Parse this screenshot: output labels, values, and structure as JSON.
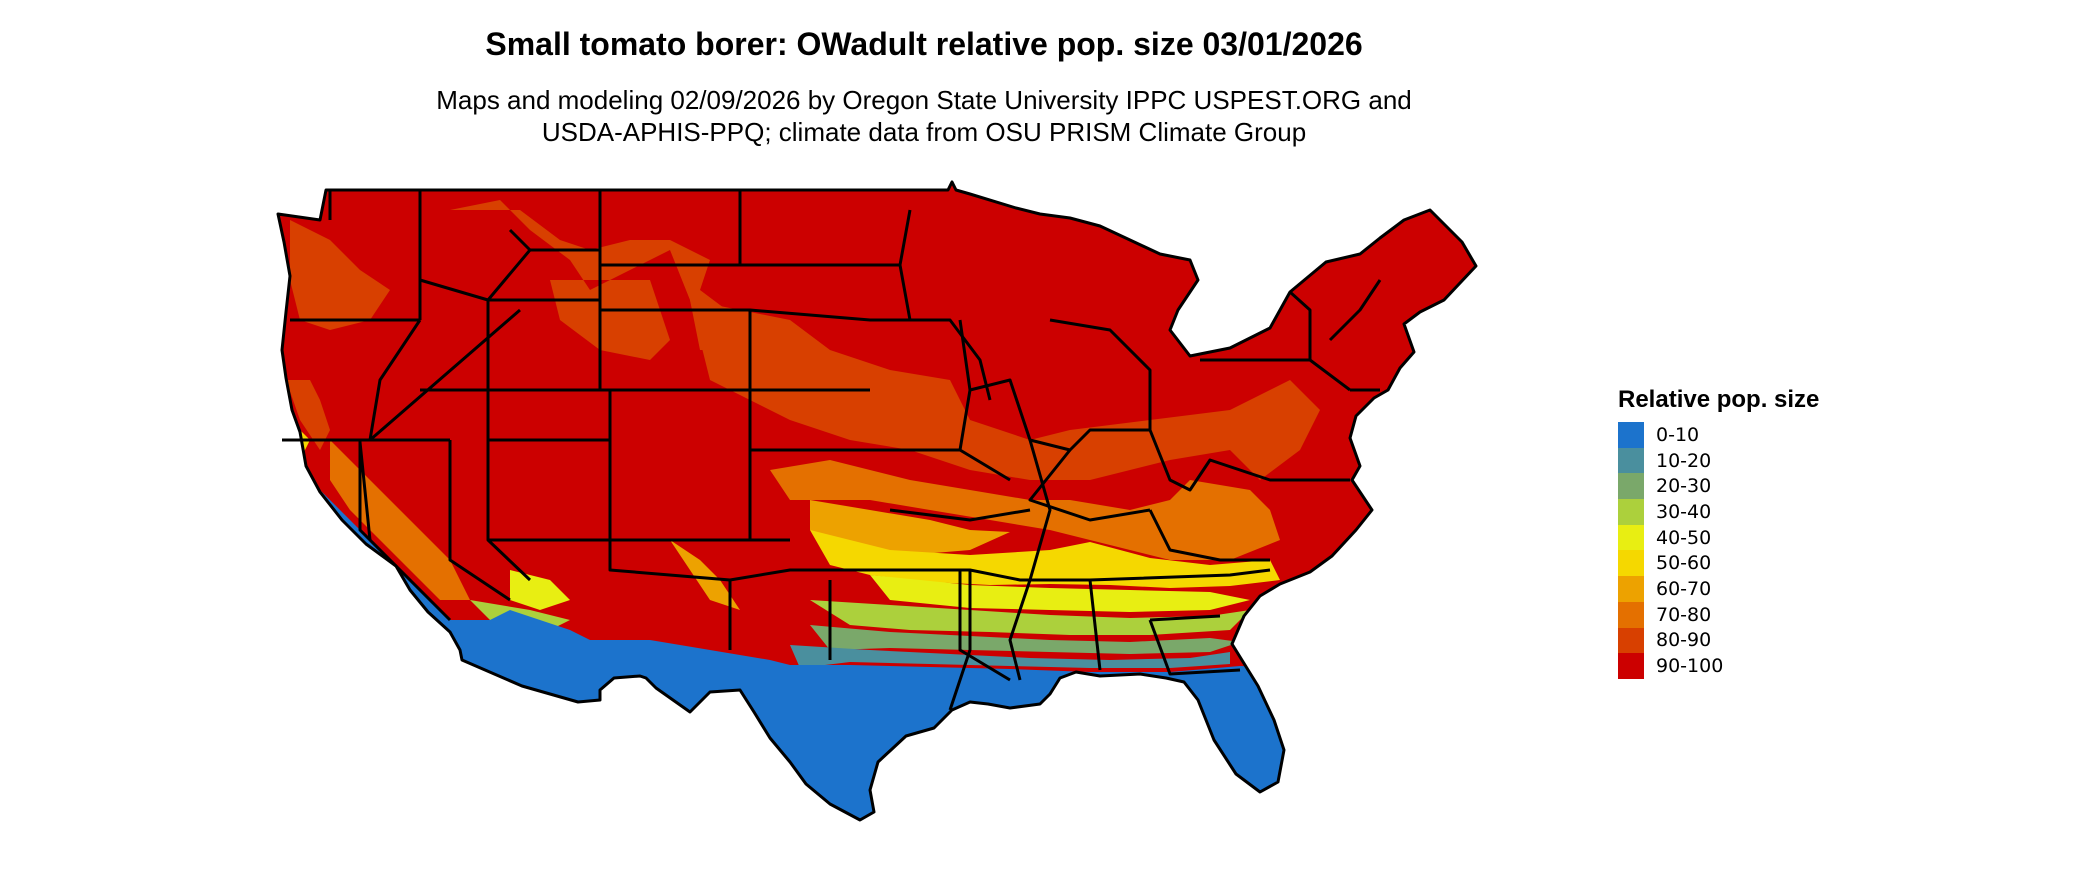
{
  "title": "Small tomato borer: OWadult relative pop. size 03/01/2026",
  "subtitle_line1": "Maps and modeling 02/09/2026 by Oregon State University IPPC USPEST.ORG and",
  "subtitle_line2": "USDA-APHIS-PPQ; climate data from OSU PRISM Climate Group",
  "legend": {
    "title": "Relative pop. size",
    "items": [
      {
        "label": "0-10",
        "color": "#1c73cc"
      },
      {
        "label": "10-20",
        "color": "#4a8f9e"
      },
      {
        "label": "20-30",
        "color": "#7aa86a"
      },
      {
        "label": "30-40",
        "color": "#acd03c"
      },
      {
        "label": "40-50",
        "color": "#e8ee12"
      },
      {
        "label": "50-60",
        "color": "#f5d800"
      },
      {
        "label": "60-70",
        "color": "#eda200"
      },
      {
        "label": "70-80",
        "color": "#e47000"
      },
      {
        "label": "80-90",
        "color": "#d84000"
      },
      {
        "label": "90-100",
        "color": "#cc0000"
      }
    ]
  }
}
